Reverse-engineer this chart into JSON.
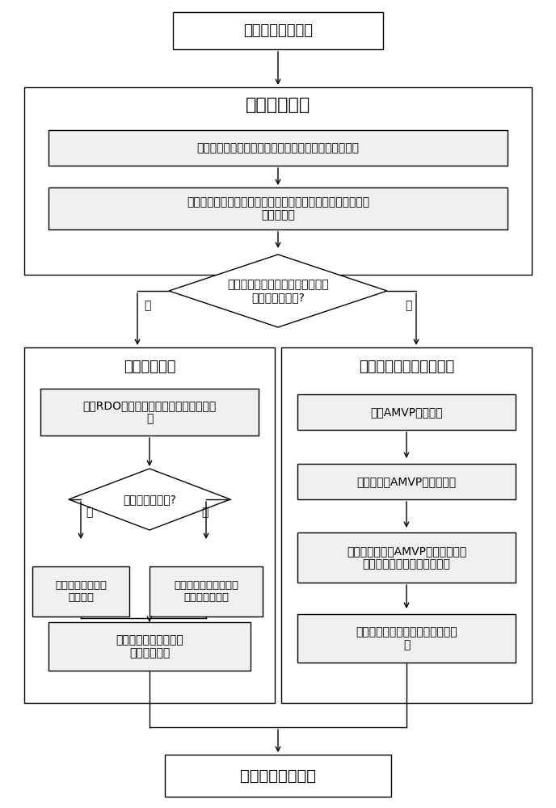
{
  "bg_color": "#ffffff",
  "lw": 1.0,
  "ec": "#000000",
  "fc": "#ffffff",
  "gray_fc": "#e8e8e8",
  "start_text": "开始运动补偿预测",
  "mv_title": "运动矢量约束",
  "detect_text": "检测与当前编码块时域和空域相邻的已编码块是否存在",
  "analyze_text": "分析当前编码块的运动矢量和它周围已编码块的运动矢量之间\n的几何关系",
  "diamond1_text": "当前编码块和周围编码块是否属于\n同一个实际物体?",
  "yes_label": "是",
  "no_label": "否",
  "merge_title": "融合模式预测",
  "amvp_title": "加权的高级运动矢量预测",
  "rdo_text": "通过RDO准则选择最合适的融合模式索引\n值",
  "diamond2_text": "编码标志位为零?",
  "skip_text": "传输跳过模式标志\n和索引值",
  "select_text": "选择融合模式索引值不\n再进行运动搜索",
  "encode_merge_text": "将该索引值和残差数据\n进行编码传输",
  "amvp_cand_text": "获得AMVP的候选值",
  "weighted_text": "计算加权的AMVP作为预测值",
  "best_mv_text": "基于得到加权的AMVP预测值，通过\n运动搜索得到最优的运动矢量",
  "encode_amvp_text": "编码并传输运动矢量残差和残差数\n据",
  "end_text": "结束运动补偿预测"
}
